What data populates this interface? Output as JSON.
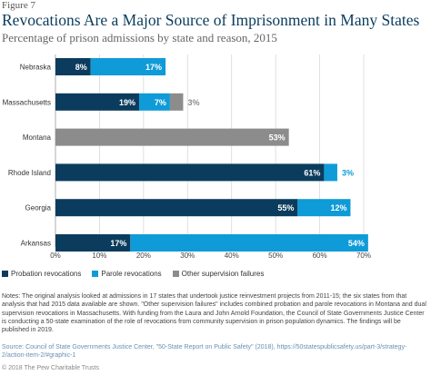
{
  "figure_label": "Figure 7",
  "colors": {
    "probation": "#0b3c5d",
    "parole": "#0f9bd7",
    "other": "#8c8c8c",
    "grid": "#d9d9d9",
    "title": "#0b3c5d"
  },
  "chart_data": {
    "type": "bar",
    "orientation": "horizontal",
    "stacked": true,
    "title": "Revocations Are a Major Source of Imprisonment in Many States",
    "subtitle": "Percentage of prison admissions by state and reason, 2015",
    "categories": [
      "Nebraska",
      "Massachusetts",
      "Montana",
      "Rhode Island",
      "Georgia",
      "Arkansas"
    ],
    "series": [
      {
        "name": "Probation revocations",
        "values": [
          8,
          19,
          null,
          61,
          55,
          17
        ],
        "labels": [
          "8%",
          "19%",
          "",
          "61%",
          "55%",
          "17%"
        ]
      },
      {
        "name": "Parole revocations",
        "values": [
          17,
          7,
          null,
          3,
          12,
          54
        ],
        "labels": [
          "17%",
          "7%",
          "",
          "3%",
          "12%",
          "54%"
        ]
      },
      {
        "name": "Other supervision failures",
        "values": [
          null,
          3,
          53,
          null,
          null,
          null
        ],
        "labels": [
          "",
          "3%",
          "53%",
          "",
          "",
          ""
        ]
      }
    ],
    "xlim": [
      0,
      70
    ],
    "xticks": [
      "0%",
      "10%",
      "20%",
      "30%",
      "40%",
      "50%",
      "60%",
      "70%"
    ],
    "grid": true,
    "legend_position": "bottom-left"
  },
  "notes": "Notes: The original analysis looked at admissions in 17 states that undertook justice reinvestment projects from 2011-15; the six states from that analysis that had 2015 data available are shown. \"Other supervision failures\" includes combined probation and parole revocations in Montana and dual supervision revocations in Massachusetts. With funding from the Laura and John Arnold Foundation, the Council of State Governments Justice Center is conducting a 50-state examination of the role of revocations from community supervision in prison population dynamics. The findings will be published in 2019.",
  "source": "Source: Council of State Governments Justice Center, \"50-State Report on Public Safety\" (2018), https://50statespublicsafety.us/part-3/strategy-2/action-item-2/#graphic-1",
  "copyright": "© 2018 The Pew Charitable Trusts"
}
